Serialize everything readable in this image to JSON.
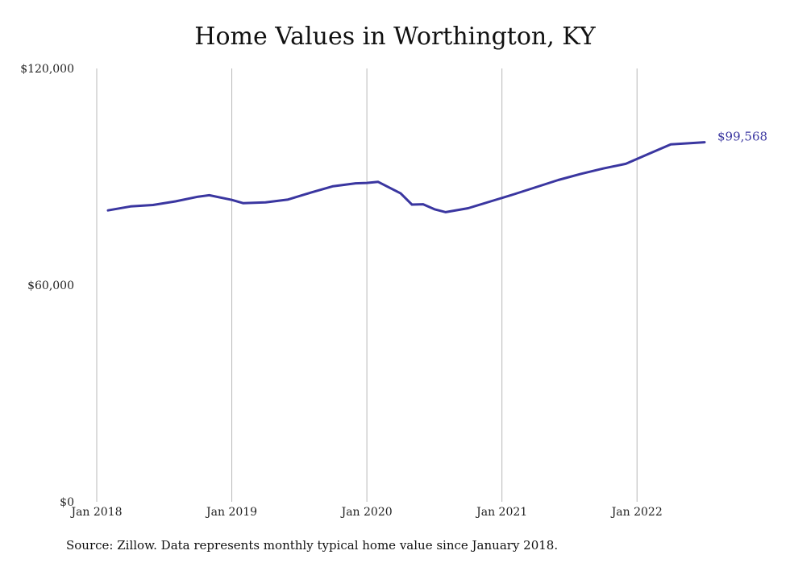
{
  "chart_data": {
    "type": "line",
    "title": "Home Values in Worthington, KY",
    "xlabel": "",
    "ylabel": "",
    "ylim": [
      0,
      120000
    ],
    "y_ticks": [
      "$0",
      "$60,000",
      "$120,000"
    ],
    "y_tick_values": [
      0,
      60000,
      120000
    ],
    "x_ticks": [
      "Jan 2018",
      "Jan 2019",
      "Jan 2020",
      "Jan 2021",
      "Jan 2022"
    ],
    "x_tick_values": [
      "2018-01",
      "2019-01",
      "2020-01",
      "2021-01",
      "2022-01"
    ],
    "xlim": [
      "2018-01",
      "2022-07"
    ],
    "grid": "vertical",
    "line_color": "#3a36a0",
    "series": [
      {
        "x": [
          "2018-02",
          "2018-04",
          "2018-06",
          "2018-08",
          "2018-10",
          "2018-11",
          "2019-01",
          "2019-02",
          "2019-04",
          "2019-06",
          "2019-08",
          "2019-10",
          "2019-12",
          "2020-01",
          "2020-02",
          "2020-04",
          "2020-05",
          "2020-06",
          "2020-07",
          "2020-08",
          "2020-10",
          "2020-12",
          "2021-02",
          "2021-04",
          "2021-06",
          "2021-08",
          "2021-10",
          "2021-12",
          "2022-02",
          "2022-04",
          "2022-07"
        ],
        "y": [
          80700,
          81800,
          82200,
          83200,
          84500,
          84900,
          83600,
          82700,
          82900,
          83700,
          85600,
          87400,
          88200,
          88300,
          88600,
          85400,
          82300,
          82400,
          81000,
          80200,
          81300,
          83200,
          85100,
          87100,
          89100,
          90800,
          92300,
          93600,
          96300,
          99000,
          99568
        ]
      }
    ],
    "end_label": "$99,568",
    "source": "Source: Zillow. Data represents monthly typical home value since January 2018."
  }
}
